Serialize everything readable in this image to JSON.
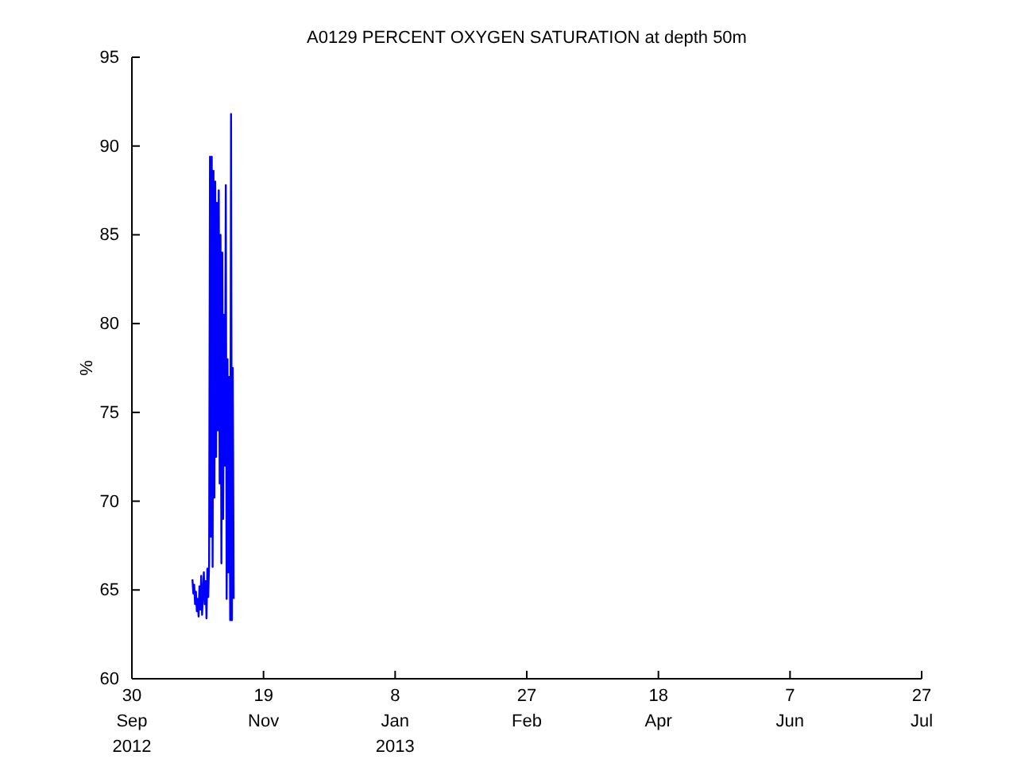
{
  "chart_data": {
    "type": "line",
    "title": "A0129 PERCENT OXYGEN SATURATION at depth 50m",
    "ylabel": "%",
    "xlim": [
      "2012-09-30",
      "2013-07-27"
    ],
    "xticks": [
      {
        "value": "2012-09-30",
        "label": "30\nSep\n2012"
      },
      {
        "value": "2012-11-19",
        "label": "19\nNov"
      },
      {
        "value": "2013-01-08",
        "label": "8\nJan\n2013"
      },
      {
        "value": "2013-02-27",
        "label": "27\nFeb"
      },
      {
        "value": "2013-04-18",
        "label": "18\nApr"
      },
      {
        "value": "2013-06-07",
        "label": "7\nJun"
      },
      {
        "value": "2013-07-27",
        "label": "27\nJul"
      }
    ],
    "ylim": [
      60,
      95
    ],
    "yticks": [
      60,
      65,
      70,
      75,
      80,
      85,
      90,
      95
    ],
    "grid": false,
    "x": [
      "2012-10-23T00:00",
      "2012-10-23T08:00",
      "2012-10-23T16:00",
      "2012-10-24T00:00",
      "2012-10-24T08:00",
      "2012-10-24T16:00",
      "2012-10-25T00:00",
      "2012-10-25T08:00",
      "2012-10-25T16:00",
      "2012-10-26T00:00",
      "2012-10-26T08:00",
      "2012-10-26T16:00",
      "2012-10-27T00:00",
      "2012-10-27T08:00",
      "2012-10-27T16:00",
      "2012-10-28T00:00",
      "2012-10-28T08:00",
      "2012-10-28T16:00",
      "2012-10-29T00:00",
      "2012-10-29T08:00",
      "2012-10-29T16:00",
      "2012-10-30T00:00",
      "2012-10-30T08:00",
      "2012-10-30T16:00",
      "2012-10-31T00:00",
      "2012-10-31T08:00",
      "2012-10-31T16:00",
      "2012-11-01T00:00",
      "2012-11-01T08:00",
      "2012-11-01T16:00",
      "2012-11-02T00:00",
      "2012-11-02T08:00",
      "2012-11-02T16:00",
      "2012-11-03T00:00",
      "2012-11-03T08:00",
      "2012-11-03T16:00",
      "2012-11-04T00:00",
      "2012-11-04T08:00",
      "2012-11-04T16:00",
      "2012-11-05T00:00",
      "2012-11-05T08:00",
      "2012-11-05T16:00",
      "2012-11-06T00:00",
      "2012-11-06T08:00",
      "2012-11-06T16:00",
      "2012-11-07T00:00",
      "2012-11-07T08:00",
      "2012-11-07T16:00"
    ],
    "series": [
      {
        "color": "#0000ff",
        "values": [
          65.6,
          64.8,
          65.3,
          64.2,
          64.9,
          63.8,
          64.5,
          63.5,
          65.2,
          63.9,
          65.8,
          63.6,
          64.8,
          66.0,
          64.2,
          65.5,
          63.4,
          66.2,
          64.6,
          66.5,
          89.4,
          68.0,
          89.4,
          66.3,
          88.6,
          70.2,
          88.0,
          72.5,
          86.8,
          74.0,
          87.5,
          71.0,
          85.0,
          66.5,
          84.0,
          69.0,
          80.5,
          72.0,
          87.8,
          64.5,
          78.0,
          66.0,
          77.0,
          63.3,
          91.8,
          63.3,
          77.5,
          64.5
        ]
      }
    ]
  }
}
